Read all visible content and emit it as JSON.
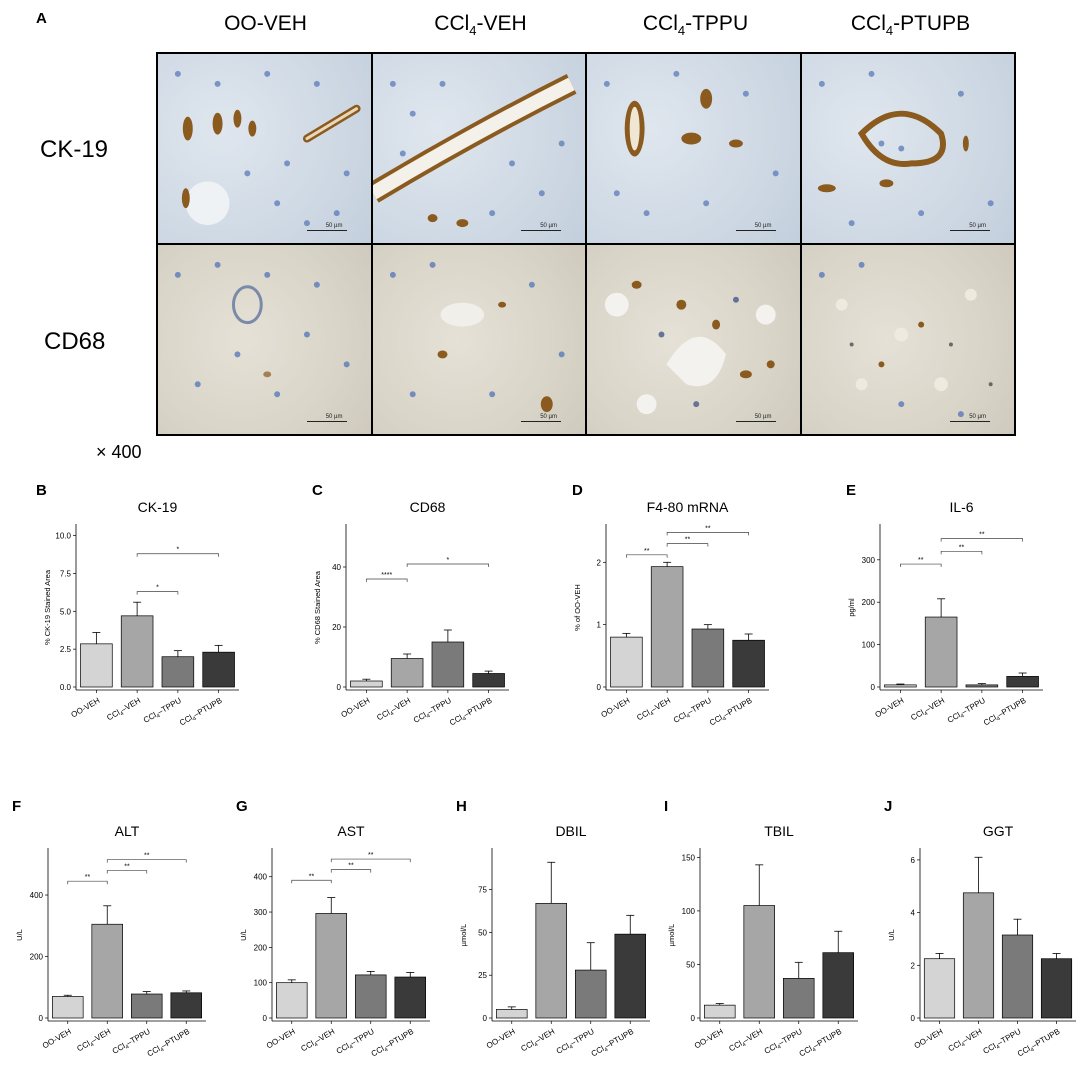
{
  "figure_a": {
    "letter": "A",
    "columns": [
      "OO-VEH",
      "CCl4-VEH",
      "CCl4-TPPU",
      "CCl4-PTUPB"
    ],
    "rows": [
      "CK-19",
      "CD68"
    ],
    "magnification": "× 400",
    "scale_bar": "50 µm"
  },
  "colors": {
    "OO-VEH": "#d4d4d4",
    "CCl4-VEH": "#a6a6a6",
    "CCl4-TPPU": "#7a7a7a",
    "CCl4-PTUPB": "#3a3a3a",
    "brown_stain": "#8a5a1e",
    "nuclei": "#5a7ab8"
  },
  "chart_data": [
    {
      "letter": "B",
      "type": "bar",
      "title": "CK-19",
      "ylabel": "% CK-19 Stained Area",
      "ylim": [
        0,
        10.5
      ],
      "yticks": [
        "0.0",
        "2.5",
        "5.0",
        "7.5",
        "10.0"
      ],
      "ytick_values": [
        0,
        2.5,
        5,
        7.5,
        10
      ],
      "categories": [
        "OO-VEH",
        "CCl4-VEH",
        "CCl4-TPPU",
        "CCl4-PTUPB"
      ],
      "values": [
        2.85,
        4.7,
        2.0,
        2.3
      ],
      "errors": [
        0.75,
        0.9,
        0.4,
        0.45
      ],
      "brackets": [
        {
          "from": 1,
          "to": 2,
          "label": "*",
          "level": 6.3
        },
        {
          "from": 1,
          "to": 3,
          "label": "*",
          "level": 8.8
        }
      ]
    },
    {
      "letter": "C",
      "type": "bar",
      "title": "CD68",
      "ylabel": "% CD68 Stained Area",
      "ylim": [
        0,
        53
      ],
      "yticks": [
        "0",
        "20",
        "40"
      ],
      "ytick_values": [
        0,
        20,
        40
      ],
      "categories": [
        "OO-VEH",
        "CCl4-VEH",
        "CCl4-TPPU",
        "CCl4-PTUPB"
      ],
      "values": [
        2,
        9.5,
        15,
        4.5
      ],
      "errors": [
        0.6,
        1.5,
        4,
        0.8
      ],
      "brackets": [
        {
          "from": 0,
          "to": 1,
          "label": "****",
          "level": 36
        },
        {
          "from": 1,
          "to": 3,
          "label": "*",
          "level": 41
        }
      ]
    },
    {
      "letter": "D",
      "type": "bar",
      "title": "F4-80 mRNA",
      "ylabel": "% of OO-VEH",
      "ylim": [
        0,
        2.55
      ],
      "yticks": [
        "0",
        "1",
        "2"
      ],
      "ytick_values": [
        0,
        1,
        2
      ],
      "categories": [
        "OO-VEH",
        "CCl4-VEH",
        "CCl4-TPPU",
        "CCl4-PTUPB"
      ],
      "values": [
        0.8,
        1.93,
        0.93,
        0.75
      ],
      "errors": [
        0.06,
        0.07,
        0.07,
        0.1
      ],
      "brackets": [
        {
          "from": 0,
          "to": 1,
          "label": "**",
          "level": 2.12
        },
        {
          "from": 1,
          "to": 2,
          "label": "**",
          "level": 2.3
        },
        {
          "from": 1,
          "to": 3,
          "label": "**",
          "level": 2.48
        }
      ]
    },
    {
      "letter": "E",
      "type": "bar",
      "title": "IL-6",
      "ylabel": "pg/ml",
      "ylim": [
        0,
        375
      ],
      "yticks": [
        "0",
        "100",
        "200",
        "300"
      ],
      "ytick_values": [
        0,
        100,
        200,
        300
      ],
      "categories": [
        "OO-VEH",
        "CCl4-VEH",
        "CCl4-TPPU",
        "CCl4-PTUPB"
      ],
      "values": [
        5,
        165,
        5,
        25
      ],
      "errors": [
        2,
        43,
        3,
        8
      ],
      "brackets": [
        {
          "from": 0,
          "to": 1,
          "label": "**",
          "level": 290
        },
        {
          "from": 1,
          "to": 2,
          "label": "**",
          "level": 320
        },
        {
          "from": 1,
          "to": 3,
          "label": "**",
          "level": 350
        }
      ]
    },
    {
      "letter": "F",
      "type": "bar",
      "title": "ALT",
      "ylabel": "U/L",
      "ylim": [
        0,
        540
      ],
      "yticks": [
        "0",
        "200",
        "400"
      ],
      "ytick_values": [
        0,
        200,
        400
      ],
      "categories": [
        "OO-VEH",
        "CCl4-VEH",
        "CCl4-TPPU",
        "CCl4-PTUPB"
      ],
      "values": [
        70,
        305,
        78,
        82
      ],
      "errors": [
        4,
        60,
        8,
        6
      ],
      "brackets": [
        {
          "from": 0,
          "to": 1,
          "label": "**",
          "level": 445
        },
        {
          "from": 1,
          "to": 2,
          "label": "**",
          "level": 480
        },
        {
          "from": 1,
          "to": 3,
          "label": "**",
          "level": 515
        }
      ]
    },
    {
      "letter": "G",
      "type": "bar",
      "title": "AST",
      "ylabel": "U/L",
      "ylim": [
        0,
        470
      ],
      "yticks": [
        "0",
        "100",
        "200",
        "300",
        "400"
      ],
      "ytick_values": [
        0,
        100,
        200,
        300,
        400
      ],
      "categories": [
        "OO-VEH",
        "CCl4-VEH",
        "CCl4-TPPU",
        "CCl4-PTUPB"
      ],
      "values": [
        100,
        296,
        122,
        116
      ],
      "errors": [
        8,
        45,
        10,
        13
      ],
      "brackets": [
        {
          "from": 0,
          "to": 1,
          "label": "**",
          "level": 390
        },
        {
          "from": 1,
          "to": 2,
          "label": "**",
          "level": 420
        },
        {
          "from": 1,
          "to": 3,
          "label": "**",
          "level": 450
        }
      ]
    },
    {
      "letter": "H",
      "type": "bar",
      "title": "DBIL",
      "ylabel": "µmol/L",
      "ylim": [
        0,
        97
      ],
      "yticks": [
        "0",
        "25",
        "50",
        "75"
      ],
      "ytick_values": [
        0,
        25,
        50,
        75
      ],
      "categories": [
        "OO-VEH",
        "CCl4-VEH",
        "CCl4-TPPU",
        "CCl4-PTUPB"
      ],
      "values": [
        5,
        67,
        28,
        49
      ],
      "errors": [
        1.5,
        24,
        16,
        11
      ],
      "brackets": []
    },
    {
      "letter": "I",
      "type": "bar",
      "title": "TBIL",
      "ylabel": "µmol/L",
      "ylim": [
        0,
        155
      ],
      "yticks": [
        "0",
        "50",
        "100",
        "150"
      ],
      "ytick_values": [
        0,
        50,
        100,
        150
      ],
      "categories": [
        "OO-VEH",
        "CCl4-VEH",
        "CCl4-TPPU",
        "CCl4-PTUPB"
      ],
      "values": [
        12,
        105,
        37,
        61
      ],
      "errors": [
        1.5,
        38,
        15,
        20
      ],
      "brackets": []
    },
    {
      "letter": "J",
      "type": "bar",
      "title": "GGT",
      "ylabel": "U/L",
      "ylim": [
        0,
        6.3
      ],
      "yticks": [
        "0",
        "2",
        "4",
        "6"
      ],
      "ytick_values": [
        0,
        2,
        4,
        6
      ],
      "categories": [
        "OO-VEH",
        "CCl4-VEH",
        "CCl4-TPPU",
        "CCl4-PTUPB"
      ],
      "values": [
        2.25,
        4.75,
        3.15,
        2.25
      ],
      "errors": [
        0.2,
        1.35,
        0.6,
        0.2
      ],
      "brackets": []
    }
  ]
}
